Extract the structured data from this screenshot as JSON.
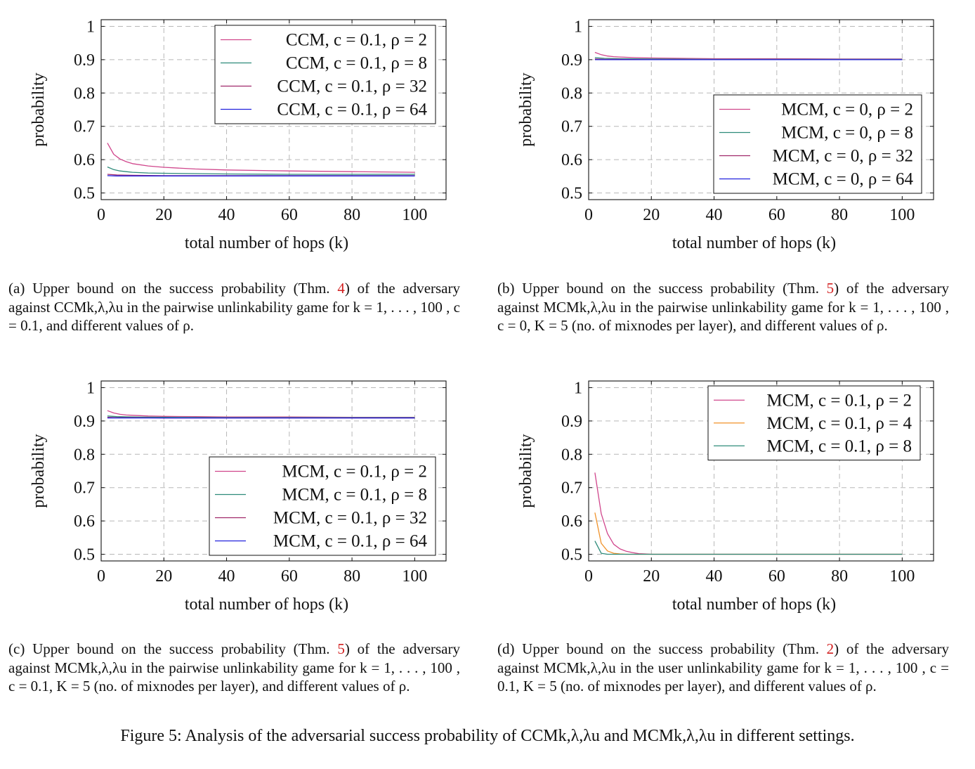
{
  "chart_data": [
    {
      "type": "line",
      "xlabel": "total number of hops (k)",
      "ylabel": "probability",
      "xlim": [
        0,
        110
      ],
      "ylim": [
        0.48,
        1.02
      ],
      "xticks": [
        0,
        20,
        40,
        60,
        80,
        100
      ],
      "yticks": [
        0.5,
        0.6,
        0.7,
        0.8,
        0.9,
        1
      ],
      "ytick_labels": [
        "0.5",
        "0.6",
        "0.7",
        "0.8",
        "0.9",
        "1"
      ],
      "grid": true,
      "legend_position": "top-right",
      "series": [
        {
          "name": "CCM, c = 0.1, ρ = 2",
          "color": "#d0468c",
          "x": [
            2,
            4,
            6,
            8,
            10,
            15,
            20,
            30,
            40,
            60,
            80,
            100
          ],
          "y": [
            0.65,
            0.616,
            0.602,
            0.594,
            0.588,
            0.581,
            0.577,
            0.572,
            0.569,
            0.566,
            0.564,
            0.562
          ]
        },
        {
          "name": "CCM, c = 0.1, ρ = 8",
          "color": "#2e8b7a",
          "x": [
            2,
            4,
            6,
            8,
            10,
            15,
            20,
            30,
            40,
            60,
            80,
            100
          ],
          "y": [
            0.578,
            0.57,
            0.566,
            0.564,
            0.562,
            0.56,
            0.559,
            0.558,
            0.557,
            0.556,
            0.556,
            0.556
          ]
        },
        {
          "name": "CCM, c = 0.1, ρ = 32",
          "color": "#a0286a",
          "x": [
            2,
            5,
            10,
            20,
            40,
            60,
            80,
            100
          ],
          "y": [
            0.556,
            0.554,
            0.553,
            0.552,
            0.552,
            0.552,
            0.552,
            0.552
          ]
        },
        {
          "name": "CCM, c = 0.1, ρ = 64",
          "color": "#2222dd",
          "x": [
            2,
            5,
            10,
            20,
            40,
            60,
            80,
            100
          ],
          "y": [
            0.552,
            0.551,
            0.551,
            0.551,
            0.551,
            0.551,
            0.551,
            0.551
          ]
        }
      ]
    },
    {
      "type": "line",
      "xlabel": "total number of hops (k)",
      "ylabel": "probability",
      "xlim": [
        0,
        110
      ],
      "ylim": [
        0.48,
        1.02
      ],
      "xticks": [
        0,
        20,
        40,
        60,
        80,
        100
      ],
      "yticks": [
        0.5,
        0.6,
        0.7,
        0.8,
        0.9,
        1
      ],
      "ytick_labels": [
        "0.5",
        "0.6",
        "0.7",
        "0.8",
        "0.9",
        "1"
      ],
      "grid": true,
      "legend_position": "bottom-right",
      "series": [
        {
          "name": "MCM, c = 0, ρ = 2",
          "color": "#d0468c",
          "x": [
            2,
            4,
            6,
            8,
            10,
            15,
            20,
            30,
            40,
            60,
            80,
            100
          ],
          "y": [
            0.922,
            0.915,
            0.911,
            0.909,
            0.908,
            0.906,
            0.905,
            0.904,
            0.903,
            0.903,
            0.902,
            0.902
          ]
        },
        {
          "name": "MCM, c = 0, ρ = 8",
          "color": "#2e8b7a",
          "x": [
            2,
            5,
            10,
            20,
            40,
            60,
            80,
            100
          ],
          "y": [
            0.906,
            0.904,
            0.903,
            0.902,
            0.901,
            0.901,
            0.901,
            0.901
          ]
        },
        {
          "name": "MCM, c = 0, ρ = 32",
          "color": "#a0286a",
          "x": [
            2,
            5,
            10,
            20,
            40,
            60,
            80,
            100
          ],
          "y": [
            0.902,
            0.901,
            0.901,
            0.9,
            0.9,
            0.9,
            0.9,
            0.9
          ]
        },
        {
          "name": "MCM, c = 0, ρ = 64",
          "color": "#2222dd",
          "x": [
            2,
            5,
            10,
            20,
            40,
            60,
            80,
            100
          ],
          "y": [
            0.9,
            0.9,
            0.9,
            0.9,
            0.9,
            0.9,
            0.9,
            0.9
          ]
        }
      ]
    },
    {
      "type": "line",
      "xlabel": "total number of hops (k)",
      "ylabel": "probability",
      "xlim": [
        0,
        110
      ],
      "ylim": [
        0.48,
        1.02
      ],
      "xticks": [
        0,
        20,
        40,
        60,
        80,
        100
      ],
      "yticks": [
        0.5,
        0.6,
        0.7,
        0.8,
        0.9,
        1
      ],
      "ytick_labels": [
        "0.5",
        "0.6",
        "0.7",
        "0.8",
        "0.9",
        "1"
      ],
      "grid": true,
      "legend_position": "bottom-right",
      "series": [
        {
          "name": "MCM, c = 0.1, ρ = 2",
          "color": "#d0468c",
          "x": [
            2,
            4,
            6,
            8,
            10,
            15,
            20,
            30,
            40,
            60,
            80,
            100
          ],
          "y": [
            0.931,
            0.924,
            0.92,
            0.918,
            0.917,
            0.915,
            0.914,
            0.913,
            0.912,
            0.912,
            0.911,
            0.911
          ]
        },
        {
          "name": "MCM, c = 0.1, ρ = 8",
          "color": "#2e8b7a",
          "x": [
            2,
            5,
            10,
            20,
            40,
            60,
            80,
            100
          ],
          "y": [
            0.915,
            0.913,
            0.912,
            0.911,
            0.91,
            0.91,
            0.91,
            0.91
          ]
        },
        {
          "name": "MCM, c = 0.1, ρ = 32",
          "color": "#a0286a",
          "x": [
            2,
            5,
            10,
            20,
            40,
            60,
            80,
            100
          ],
          "y": [
            0.911,
            0.91,
            0.91,
            0.909,
            0.909,
            0.909,
            0.909,
            0.909
          ]
        },
        {
          "name": "MCM, c = 0.1, ρ = 64",
          "color": "#2222dd",
          "x": [
            2,
            5,
            10,
            20,
            40,
            60,
            80,
            100
          ],
          "y": [
            0.909,
            0.909,
            0.909,
            0.909,
            0.909,
            0.909,
            0.909,
            0.909
          ]
        }
      ]
    },
    {
      "type": "line",
      "xlabel": "total number of hops (k)",
      "ylabel": "probability",
      "xlim": [
        0,
        110
      ],
      "ylim": [
        0.48,
        1.02
      ],
      "xticks": [
        0,
        20,
        40,
        60,
        80,
        100
      ],
      "yticks": [
        0.5,
        0.6,
        0.7,
        0.8,
        0.9,
        1
      ],
      "ytick_labels": [
        "0.5",
        "0.6",
        "0.7",
        "0.8",
        "0.9",
        "1"
      ],
      "grid": true,
      "legend_position": "top-right",
      "series": [
        {
          "name": "MCM, c = 0.1, ρ = 2",
          "color": "#d0468c",
          "x": [
            2,
            4,
            6,
            8,
            10,
            12,
            14,
            16,
            18,
            20,
            40,
            60,
            80,
            100
          ],
          "y": [
            0.745,
            0.622,
            0.562,
            0.53,
            0.516,
            0.509,
            0.505,
            0.502,
            0.501,
            0.5,
            0.5,
            0.5,
            0.5,
            0.5
          ]
        },
        {
          "name": "MCM, c = 0.1, ρ = 4",
          "color": "#f0922a",
          "x": [
            2,
            4,
            6,
            8,
            10,
            12,
            14,
            20,
            40,
            60,
            80,
            100
          ],
          "y": [
            0.625,
            0.533,
            0.51,
            0.503,
            0.501,
            0.5,
            0.5,
            0.5,
            0.5,
            0.5,
            0.5,
            0.5
          ]
        },
        {
          "name": "MCM, c = 0.1, ρ = 8",
          "color": "#2e8b7a",
          "x": [
            2,
            4,
            6,
            8,
            10,
            20,
            40,
            60,
            80,
            100
          ],
          "y": [
            0.54,
            0.503,
            0.5,
            0.5,
            0.5,
            0.5,
            0.5,
            0.5,
            0.5,
            0.5
          ]
        }
      ]
    }
  ],
  "captions": {
    "a": {
      "prefix": "(a) Upper bound on the success probability (Thm. ",
      "ref": "4",
      "suffix": ") of the adversary against CCMk,λ,λu in the pairwise unlinkability game for k = 1, . . . , 100 , c = 0.1, and different values of ρ."
    },
    "b": {
      "prefix": "(b) Upper bound on the success probability (Thm. ",
      "ref": "5",
      "suffix": ") of the adversary against MCMk,λ,λu in the pairwise unlinkability game for k = 1, . . . , 100 , c = 0, K = 5 (no. of mixnodes per layer), and different values of ρ."
    },
    "c": {
      "prefix": "(c) Upper bound on the success probability (Thm. ",
      "ref": "5",
      "suffix": ") of the adversary against MCMk,λ,λu in the pairwise unlinkability game for k = 1, . . . , 100 , c = 0.1, K = 5 (no. of mixnodes per layer), and different values of ρ."
    },
    "d": {
      "prefix": "(d) Upper bound on the success probability (Thm. ",
      "ref": "2",
      "suffix": ") of the adversary against MCMk,λ,λu in the user unlinkability game for k = 1, . . . , 100 , c = 0.1, K = 5 (no. of mixnodes per layer), and different values of ρ."
    }
  },
  "figure_caption": "Figure 5: Analysis of the adversarial success probability of CCMk,λ,λu and MCMk,λ,λu in different settings."
}
